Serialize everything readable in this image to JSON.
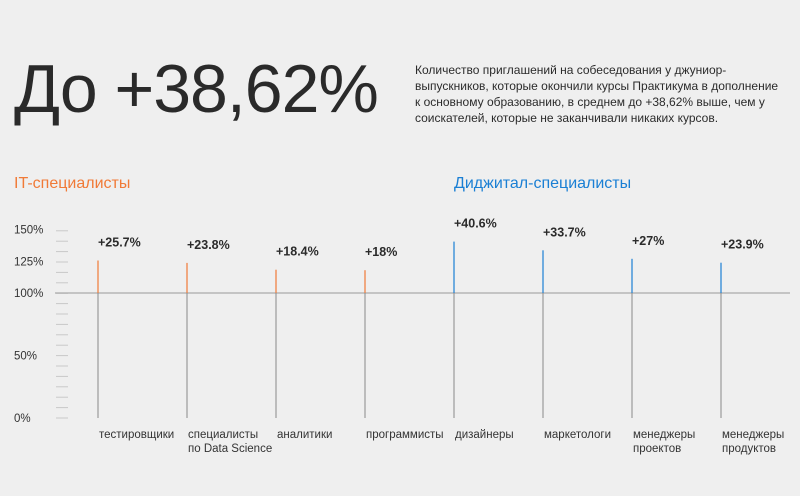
{
  "headline": "До +38,62%",
  "description": "Количество приглашений на собеседования у джуниор-выпускников, которые окончили курсы Практикума в дополнение к основному образованию, в среднем до +38,62% выше, чем у соискателей, которые не заканчивали никаких курсов.",
  "groups": {
    "it": "IT-специалисты",
    "digital": "Диджитал-специалисты"
  },
  "colors": {
    "it": "#f07a37",
    "digital": "#1a7fd4",
    "base": "#8a8a8a",
    "baseline": "#9a9a9a",
    "minor_tick": "#c8c8c8"
  },
  "chart_data": {
    "type": "bar",
    "ylim": [
      0,
      150
    ],
    "yticks": [
      0,
      50,
      100,
      125,
      150
    ],
    "ytick_labels": [
      "0%",
      "50%",
      "100%",
      "125%",
      "150%"
    ],
    "categories": [
      [
        "тестировщики"
      ],
      [
        "специалисты",
        "по Data Science"
      ],
      [
        "аналитики"
      ],
      [
        "программисты"
      ],
      [
        "дизайнеры"
      ],
      [
        "маркетологи"
      ],
      [
        "менеджеры",
        "проектов"
      ],
      [
        "менеджеры",
        "продуктов"
      ]
    ],
    "values": [
      125.7,
      123.8,
      118.4,
      118,
      140.6,
      133.7,
      127,
      123.9
    ],
    "value_labels": [
      "+25.7%",
      "+23.8%",
      "+18.4%",
      "+18%",
      "+40.6%",
      "+33.7%",
      "+27%",
      "+23.9%"
    ],
    "group_of": [
      "it",
      "it",
      "it",
      "it",
      "digital",
      "digital",
      "digital",
      "digital"
    ],
    "baseline": 100
  }
}
